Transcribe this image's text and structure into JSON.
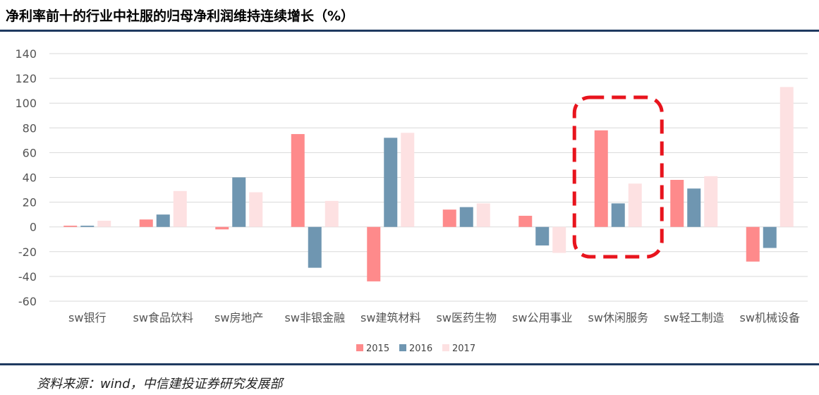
{
  "title": "净利率前十的行业中社服的归母净利润维持连续增长（%）",
  "source": "资料来源：wind，中信建投证券研究发展部",
  "colors": {
    "2015": "#fe8a8b",
    "2016": "#6f96b1",
    "2017": "#fde1e2",
    "rule": "#1f3a60",
    "highlight": "#e8141d"
  },
  "chart_data": {
    "type": "bar",
    "categories": [
      "sw银行",
      "sw食品饮料",
      "sw房地产",
      "sw非银金融",
      "sw建筑材料",
      "sw医药生物",
      "sw公用事业",
      "sw休闲服务",
      "sw轻工制造",
      "sw机械设备"
    ],
    "series": [
      {
        "name": "2015",
        "values": [
          1,
          6,
          -2,
          75,
          -44,
          14,
          9,
          78,
          38,
          -28
        ]
      },
      {
        "name": "2016",
        "values": [
          1,
          10,
          40,
          -33,
          72,
          16,
          -15,
          19,
          31,
          -17
        ]
      },
      {
        "name": "2017",
        "values": [
          5,
          29,
          28,
          21,
          76,
          19,
          -21,
          35,
          41,
          113
        ]
      }
    ],
    "yticks": [
      "140",
      "120",
      "100",
      "80",
      "60",
      "40",
      "20",
      "0",
      "-20",
      "-40",
      "-60"
    ],
    "ylim": [
      -60,
      140
    ],
    "grid": true,
    "legend": "bottom-center",
    "highlight_category": "sw休闲服务"
  }
}
